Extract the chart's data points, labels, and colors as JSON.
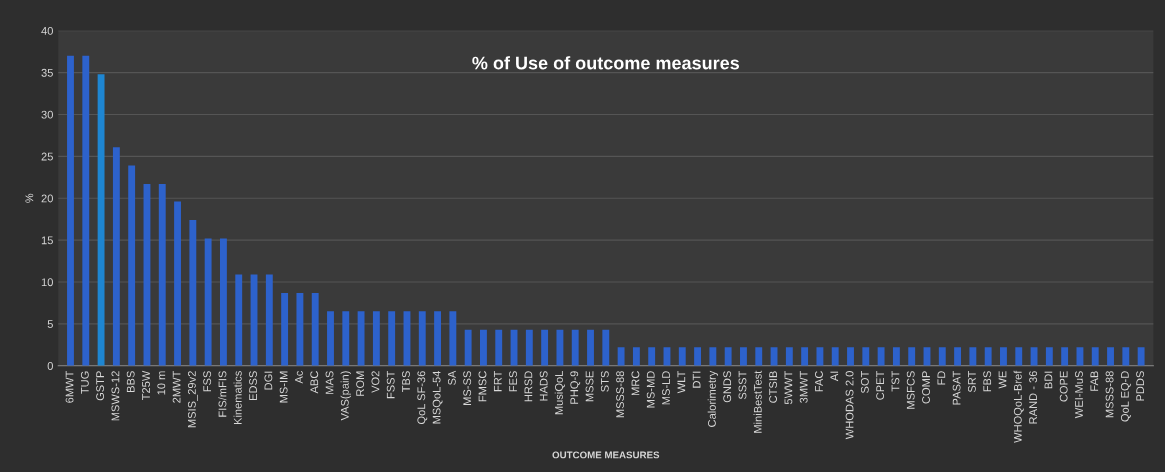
{
  "chart_data": {
    "type": "bar",
    "title": "% of Use of outcome measures",
    "xlabel": "OUTCOME MEASURES",
    "ylabel": "%",
    "categories": [
      "6MWT",
      "TUG",
      "GSTP",
      "MSWS-12",
      "BBS",
      "T25W",
      "10 m",
      "2MWT",
      "MSIS_29v2",
      "FSS",
      "FIS/mFIS",
      "Kinematics",
      "EDSS",
      "DGI",
      "MS-IM",
      "Ac",
      "ABC",
      "MAS",
      "VAS(pain)",
      "ROM",
      "VO2",
      "FSST",
      "TBS",
      "QoL SF-36",
      "MSQoL-54",
      "SA",
      "MS-SS",
      "FMSC",
      "FRT",
      "FES",
      "HRSD",
      "HADS",
      "MusiQoL",
      "PHQ-9",
      "MSSE",
      "STS",
      "MSSS-88",
      "MRC",
      "MS-MD",
      "MS-LD",
      "WLT",
      "DTI",
      "Calorimetry",
      "GNDS",
      "SSST",
      "MiniBestTest",
      "CTSIB",
      "5WWT",
      "3MWT",
      "FAC",
      "AI",
      "WHODAS 2.0",
      "SOT",
      "CPET",
      "TST",
      "MSFCS",
      "COMP",
      "FD",
      "PASAT",
      "SRT",
      "FBS",
      "WE",
      "WHOQoL-Bref",
      "RAND - 36",
      "BDI",
      "COPE",
      "WEI-MuS",
      "FAB",
      "MSSS-88",
      "QoL EQ-D",
      "PDDS"
    ],
    "values": [
      37,
      37,
      34.8,
      26.1,
      23.9,
      21.7,
      21.7,
      19.6,
      17.4,
      15.2,
      15.2,
      10.9,
      10.9,
      10.9,
      8.7,
      8.7,
      8.7,
      6.5,
      6.5,
      6.5,
      6.5,
      6.5,
      6.5,
      6.5,
      6.5,
      6.5,
      4.3,
      4.3,
      4.3,
      4.3,
      4.3,
      4.3,
      4.3,
      4.3,
      4.3,
      4.3,
      2.2,
      2.2,
      2.2,
      2.2,
      2.2,
      2.2,
      2.2,
      2.2,
      2.2,
      2.2,
      2.2,
      2.2,
      2.2,
      2.2,
      2.2,
      2.2,
      2.2,
      2.2,
      2.2,
      2.2,
      2.2,
      2.2,
      2.2,
      2.2,
      2.2,
      2.2,
      2.2,
      2.2,
      2.2,
      2.2,
      2.2,
      2.2,
      2.2,
      2.2,
      2.2
    ],
    "colors": [
      "#2d62cc",
      "#2d62cc",
      "#1e86d2",
      "#2d62cc",
      "#2d62cc",
      "#2d62cc",
      "#2d62cc",
      "#2d62cc",
      "#2d62cc",
      "#2d62cc",
      "#2d62cc",
      "#2d62cc",
      "#2d62cc",
      "#2d62cc",
      "#2d62cc",
      "#2d62cc",
      "#2d62cc",
      "#2d62cc",
      "#2d62cc",
      "#2d62cc",
      "#2d62cc",
      "#2d62cc",
      "#2d62cc",
      "#2d62cc",
      "#2d62cc",
      "#2d62cc",
      "#2d62cc",
      "#2d62cc",
      "#2d62cc",
      "#2d62cc",
      "#2d62cc",
      "#2d62cc",
      "#2d62cc",
      "#2d62cc",
      "#2d62cc",
      "#2d62cc",
      "#2d62cc",
      "#2d62cc",
      "#2d62cc",
      "#2d62cc",
      "#2d62cc",
      "#2d62cc",
      "#2d62cc",
      "#2d62cc",
      "#2d62cc",
      "#2d62cc",
      "#2d62cc",
      "#2d62cc",
      "#2d62cc",
      "#2d62cc",
      "#2d62cc",
      "#2d62cc",
      "#2d62cc",
      "#2d62cc",
      "#2d62cc",
      "#2d62cc",
      "#2d62cc",
      "#2d62cc",
      "#2d62cc",
      "#2d62cc",
      "#2d62cc",
      "#2d62cc",
      "#2d62cc",
      "#2d62cc",
      "#2d62cc",
      "#2d62cc",
      "#2d62cc",
      "#2d62cc",
      "#2d62cc",
      "#2d62cc",
      "#2d62cc"
    ],
    "ylim": [
      0,
      40
    ],
    "yticks": [
      0,
      5,
      10,
      15,
      20,
      25,
      30,
      35,
      40
    ],
    "grid": "y"
  }
}
